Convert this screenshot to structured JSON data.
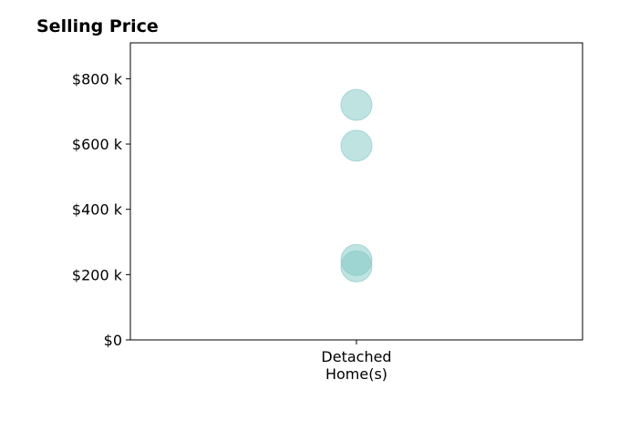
{
  "chart_data": {
    "type": "scatter",
    "title": "Selling Price",
    "xlabel": "",
    "ylabel": "",
    "categories": [
      [
        "Detached",
        "Home(s)"
      ]
    ],
    "series": [
      {
        "category_index": 0,
        "values": [
          720000,
          595000,
          245000,
          225000
        ]
      }
    ],
    "yticks": [
      0,
      200000,
      400000,
      600000,
      800000
    ],
    "ytick_labels": [
      "$0",
      "$200 k",
      "$400 k",
      "$600 k",
      "$800 k"
    ],
    "ylim": [
      0,
      910000
    ],
    "grid": false,
    "legend": "none",
    "marker_color": "#7ec8c3"
  }
}
